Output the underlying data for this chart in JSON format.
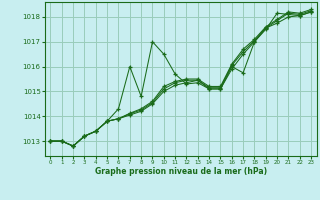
{
  "title": "Graphe pression niveau de la mer (hPa)",
  "bg_color": "#c8eef0",
  "grid_color": "#99ccbb",
  "line_color": "#1a6b1a",
  "xlim": [
    -0.5,
    23.5
  ],
  "ylim": [
    1012.4,
    1018.6
  ],
  "yticks": [
    1013,
    1014,
    1015,
    1016,
    1017,
    1018
  ],
  "xticks": [
    0,
    1,
    2,
    3,
    4,
    5,
    6,
    7,
    8,
    9,
    10,
    11,
    12,
    13,
    14,
    15,
    16,
    17,
    18,
    19,
    20,
    21,
    22,
    23
  ],
  "series": [
    [
      1013.0,
      1013.0,
      1012.8,
      1013.2,
      1013.4,
      1013.8,
      1014.3,
      1016.0,
      1014.8,
      1017.0,
      1016.5,
      1015.7,
      1015.3,
      1015.35,
      1015.1,
      1015.1,
      1016.0,
      1015.75,
      1017.0,
      1017.5,
      1018.15,
      1018.1,
      1018.05,
      1018.2
    ],
    [
      1013.0,
      1013.0,
      1012.8,
      1013.2,
      1013.4,
      1013.8,
      1013.9,
      1014.05,
      1014.2,
      1014.5,
      1015.0,
      1015.25,
      1015.35,
      1015.45,
      1015.1,
      1015.1,
      1015.9,
      1016.5,
      1017.0,
      1017.55,
      1017.75,
      1018.0,
      1018.05,
      1018.2
    ],
    [
      1013.0,
      1013.0,
      1012.8,
      1013.2,
      1013.4,
      1013.8,
      1013.9,
      1014.1,
      1014.25,
      1014.55,
      1015.1,
      1015.35,
      1015.45,
      1015.45,
      1015.15,
      1015.15,
      1016.05,
      1016.6,
      1017.05,
      1017.55,
      1017.85,
      1018.15,
      1018.1,
      1018.25
    ],
    [
      1013.0,
      1013.0,
      1012.8,
      1013.2,
      1013.4,
      1013.8,
      1013.9,
      1014.12,
      1014.3,
      1014.6,
      1015.2,
      1015.4,
      1015.5,
      1015.5,
      1015.2,
      1015.2,
      1016.1,
      1016.7,
      1017.1,
      1017.6,
      1017.9,
      1018.2,
      1018.15,
      1018.3
    ]
  ]
}
